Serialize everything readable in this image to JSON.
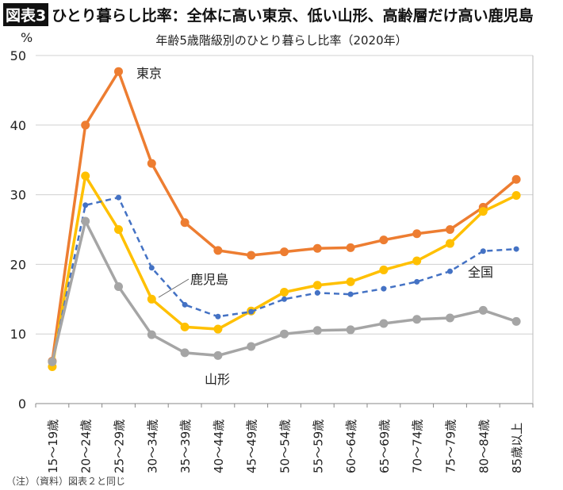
{
  "header": {
    "badge": "図表3",
    "title": "ひとり暮らし比率：全体に高い東京、低い山形、高齢層だけ高い鹿児島"
  },
  "note": "（注）（資料）図表２と同じ",
  "chart_data": {
    "type": "line",
    "title": "年齢5歳階級別のひとり暮らし比率（2020年）",
    "ylabel": "%",
    "ylim": [
      0,
      50
    ],
    "yticks": [
      "0",
      "10",
      "20",
      "30",
      "40",
      "50"
    ],
    "grid": true,
    "categories": [
      "15～19歳",
      "20～24歳",
      "25～29歳",
      "30～34歳",
      "35～39歳",
      "40～44歳",
      "45～49歳",
      "50～54歳",
      "55～59歳",
      "60～64歳",
      "65～69歳",
      "70～74歳",
      "75～79歳",
      "80～84歳",
      "85歳以上"
    ],
    "series": [
      {
        "name": "東京",
        "color": "#ED7D31",
        "style": "solid",
        "values": [
          6.1,
          40.0,
          47.7,
          34.5,
          26.0,
          22.0,
          21.3,
          21.8,
          22.3,
          22.4,
          23.5,
          24.4,
          25.0,
          28.2,
          32.2
        ]
      },
      {
        "name": "鹿児島",
        "color": "#FFC000",
        "style": "solid",
        "values": [
          5.3,
          32.7,
          25.0,
          15.0,
          11.0,
          10.7,
          13.3,
          16.0,
          17.0,
          17.5,
          19.2,
          20.5,
          23.0,
          27.6,
          29.9
        ]
      },
      {
        "name": "全国",
        "color": "#4472C4",
        "style": "dashed",
        "values": [
          6.0,
          28.5,
          29.6,
          19.5,
          14.2,
          12.5,
          13.2,
          15.0,
          15.9,
          15.7,
          16.5,
          17.5,
          19.0,
          21.9,
          22.2
        ]
      },
      {
        "name": "山形",
        "color": "#A5A5A5",
        "style": "solid",
        "values": [
          6.0,
          26.2,
          16.8,
          9.9,
          7.3,
          6.9,
          8.2,
          10.0,
          10.5,
          10.6,
          11.5,
          12.1,
          12.3,
          13.4,
          11.8
        ]
      }
    ]
  }
}
